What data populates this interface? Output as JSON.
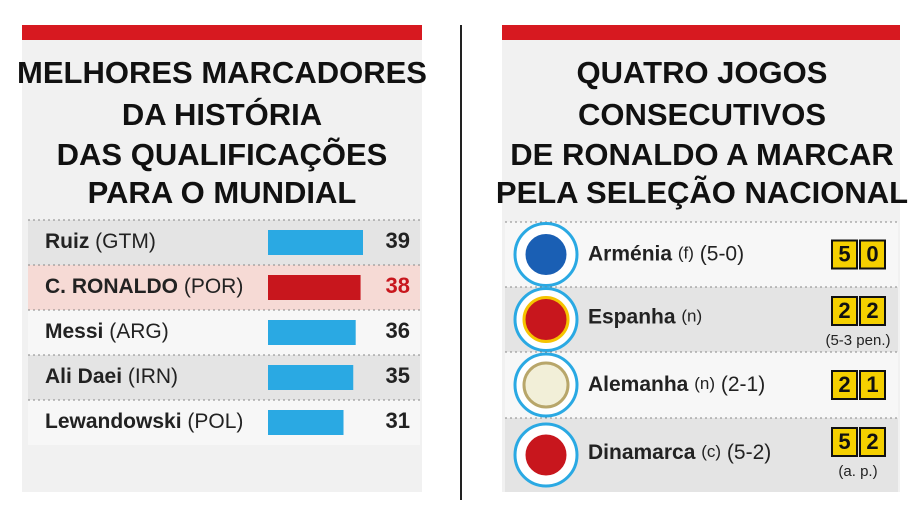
{
  "chart_data": {
    "type": "bar",
    "title_lines": [
      "MELHORES MARCADORES",
      "DA HISTÓRIA",
      "DAS QUALIFICAÇÕES",
      "PARA O MUNDIAL"
    ],
    "categories": [
      "Ruiz",
      "C. RONALDO",
      "Messi",
      "Ali Daei",
      "Lewandowski"
    ],
    "countries": [
      "(GTM)",
      "(POR)",
      "(ARG)",
      "(IRN)",
      "(POL)"
    ],
    "values": [
      39,
      38,
      36,
      35,
      31
    ],
    "colors": [
      "#2aa9e3",
      "#c8161d",
      "#2aa9e3",
      "#2aa9e3",
      "#2aa9e3"
    ]
  },
  "matches": {
    "title_lines": [
      "QUATRO JOGOS",
      "CONSECUTIVOS",
      "DE RONALDO A MARCAR",
      "PELA SELEÇÃO NACIONAL"
    ],
    "rows": [
      {
        "team": "Arménia",
        "venue": "(f)",
        "result": "(5-0)",
        "goals": [
          5,
          0
        ]
      },
      {
        "team": "Espanha",
        "venue": "(n)",
        "goals": [
          2,
          2
        ],
        "note": "(5-3 pen.)"
      },
      {
        "team": "Alemanha",
        "venue": "(n)",
        "result": "(2-1)",
        "goals": [
          2,
          1
        ]
      },
      {
        "team": "Dinamarca",
        "venue": "(c)",
        "result": "(5-2)",
        "goals": [
          5,
          2
        ],
        "note": "(a. p.)"
      }
    ]
  }
}
